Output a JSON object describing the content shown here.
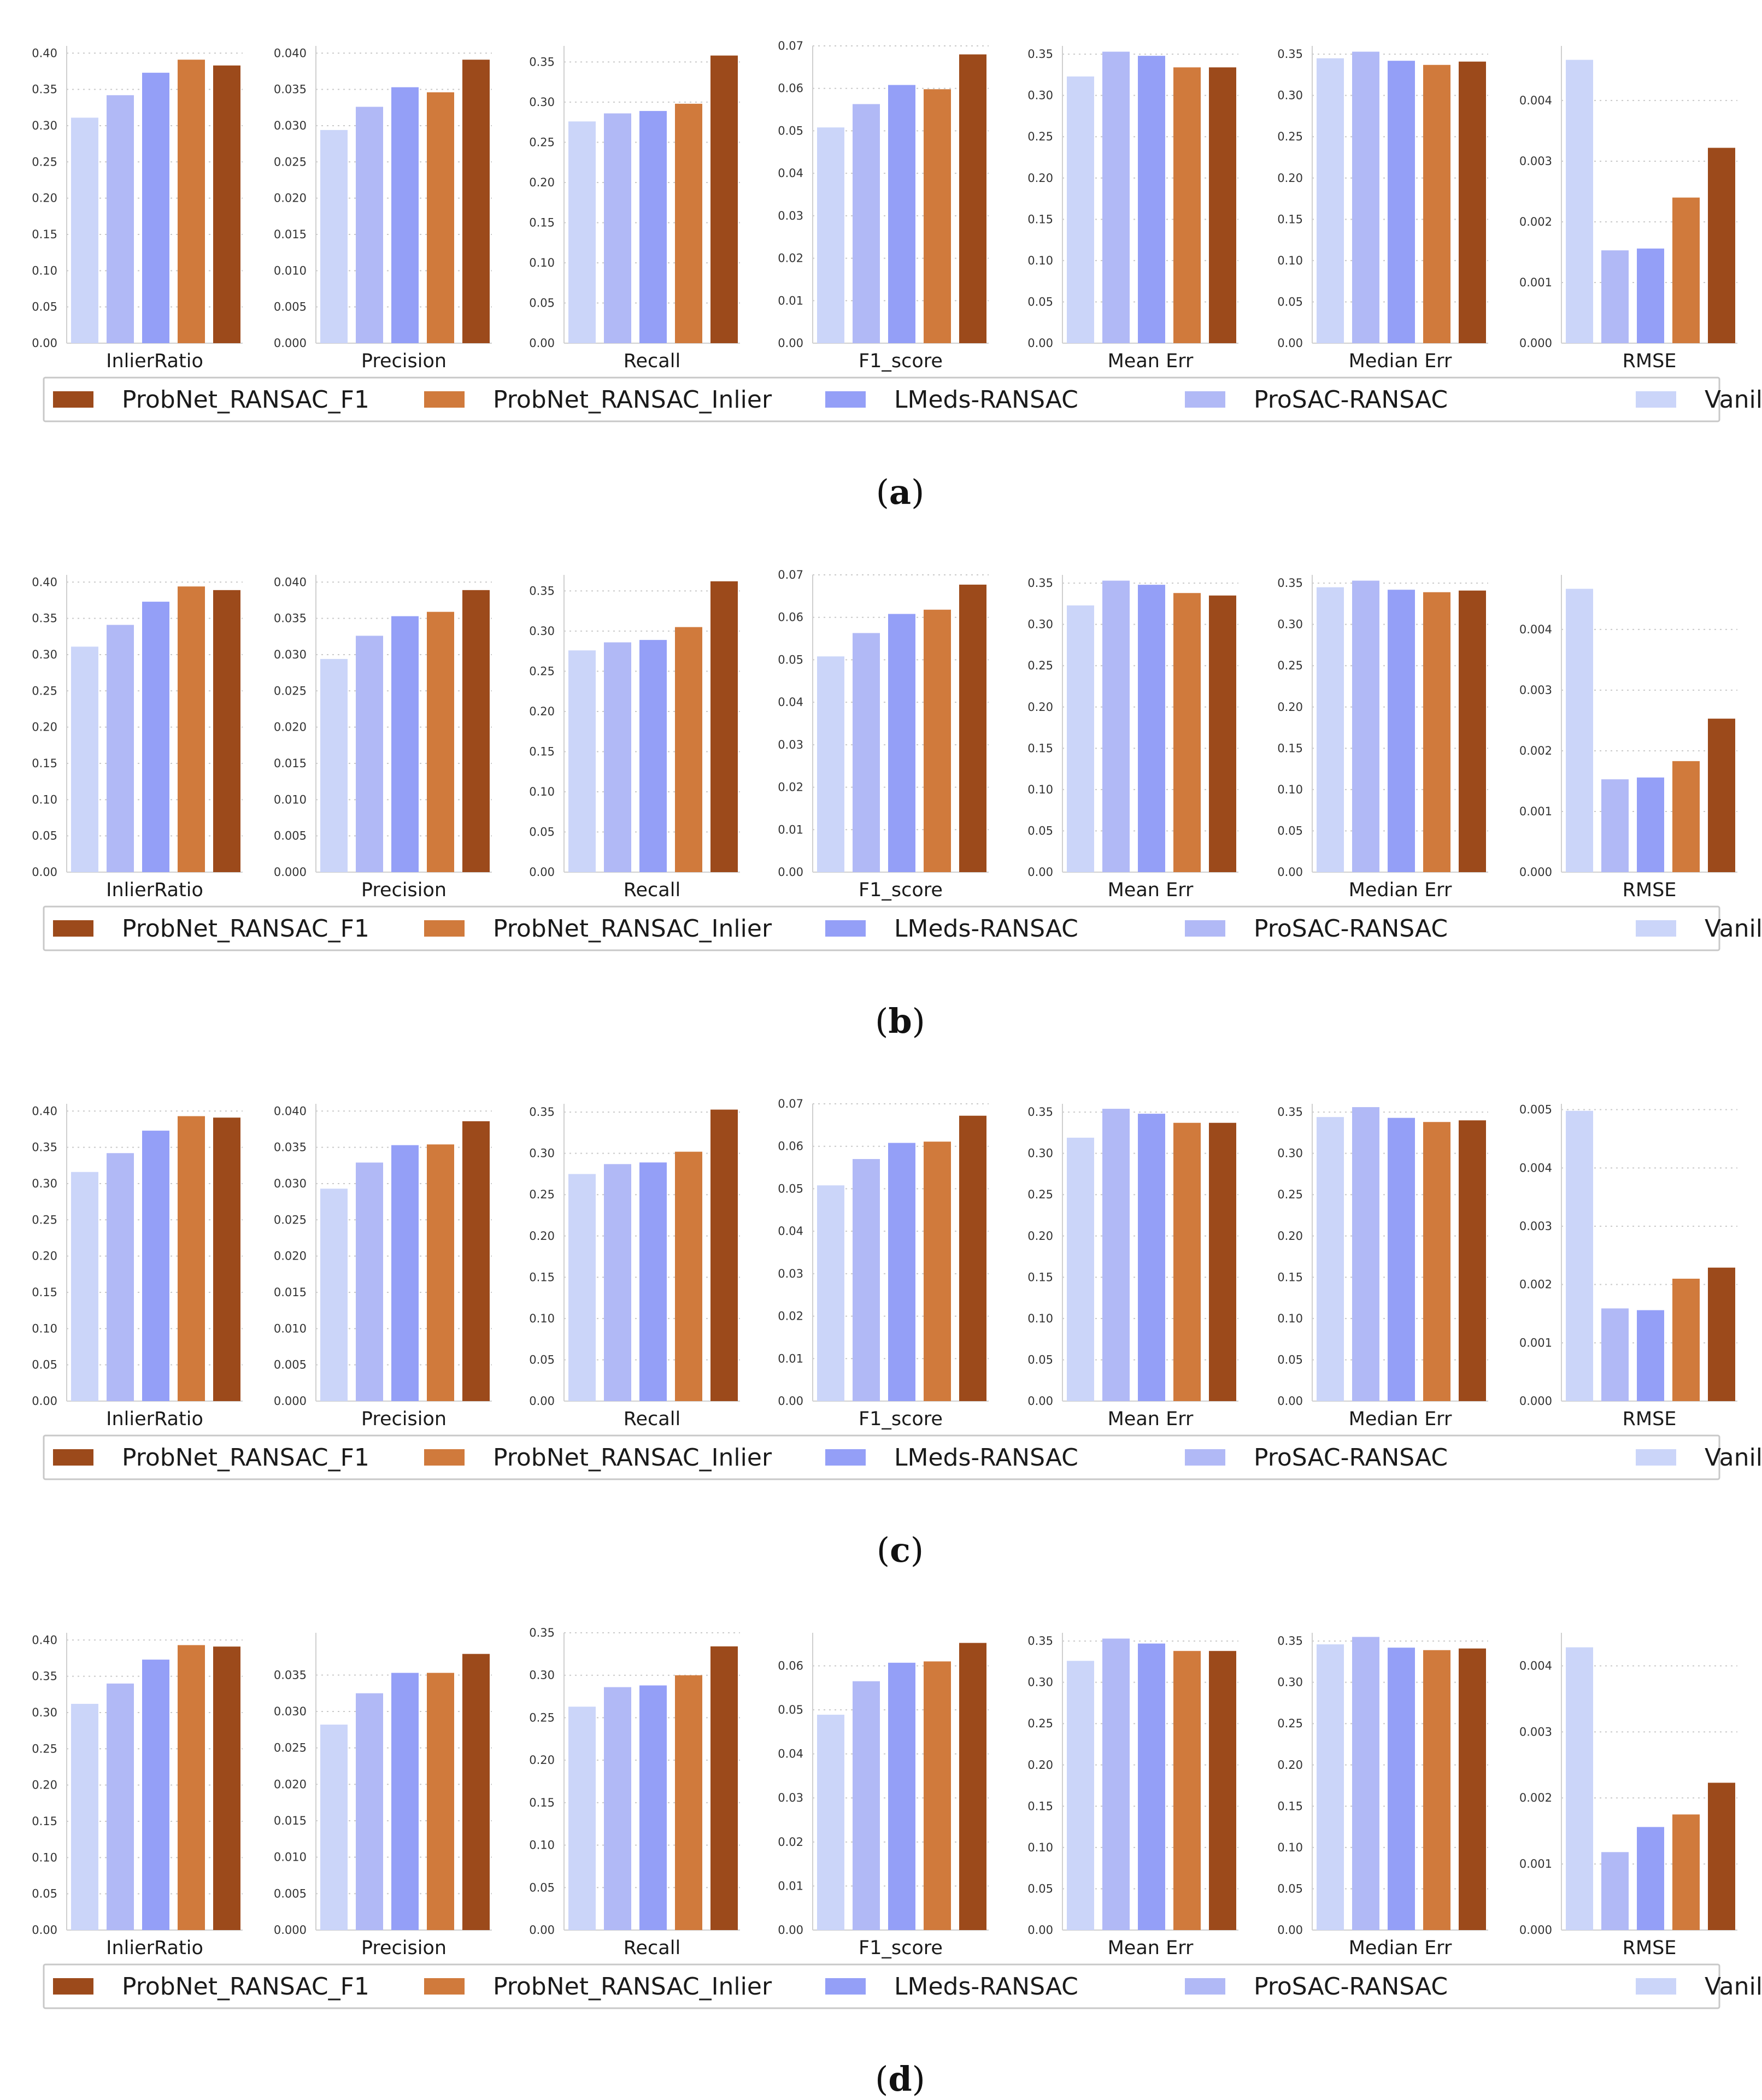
{
  "figure": {
    "legend": [
      {
        "name": "ProbNet_RANSAC_F1",
        "color": "#9c4a1b"
      },
      {
        "name": "ProbNet_RANSAC_Inlier",
        "color": "#d07a3c"
      },
      {
        "name": "LMeds-RANSAC",
        "color": "#949ff7"
      },
      {
        "name": "ProSAC-RANSAC",
        "color": "#b1b9f6"
      },
      {
        "name": "Vanilla RANSAC",
        "color": "#cbd5f9"
      }
    ],
    "bar_order": [
      "Vanilla RANSAC",
      "ProSAC-RANSAC",
      "LMeds-RANSAC",
      "ProbNet_RANSAC_Inlier",
      "ProbNet_RANSAC_F1"
    ],
    "panels": [
      {
        "label": "a"
      },
      {
        "label": "b"
      },
      {
        "label": "c"
      },
      {
        "label": "d"
      }
    ]
  },
  "chart_data": [
    {
      "panel": "(a)",
      "type": "bar",
      "charts": [
        {
          "title": "InlierRatio",
          "ylim": [
            0,
            0.41
          ],
          "ticks": [
            "0.00",
            "0.05",
            "0.10",
            "0.15",
            "0.20",
            "0.25",
            "0.30",
            "0.35",
            "0.40"
          ],
          "values": [
            0.311,
            0.342,
            0.373,
            0.391,
            0.383
          ]
        },
        {
          "title": "Precision",
          "ylim": [
            0,
            0.041
          ],
          "ticks": [
            "0.000",
            "0.005",
            "0.010",
            "0.015",
            "0.020",
            "0.025",
            "0.030",
            "0.035",
            "0.040"
          ],
          "values": [
            0.0294,
            0.0326,
            0.0353,
            0.0346,
            0.0391
          ]
        },
        {
          "title": "Recall",
          "ylim": [
            0,
            0.37
          ],
          "ticks": [
            "0.00",
            "0.05",
            "0.10",
            "0.15",
            "0.20",
            "0.25",
            "0.30",
            "0.35"
          ],
          "values": [
            0.276,
            0.286,
            0.289,
            0.298,
            0.358
          ]
        },
        {
          "title": "F1_score",
          "ylim": [
            0,
            0.07
          ],
          "ticks": [
            "0.00",
            "0.01",
            "0.02",
            "0.03",
            "0.04",
            "0.05",
            "0.06",
            "0.07"
          ],
          "values": [
            0.0508,
            0.0563,
            0.0608,
            0.0598,
            0.068
          ]
        },
        {
          "title": "Mean Err",
          "ylim": [
            0,
            0.36
          ],
          "ticks": [
            "0.00",
            "0.05",
            "0.10",
            "0.15",
            "0.20",
            "0.25",
            "0.30",
            "0.35"
          ],
          "values": [
            0.323,
            0.353,
            0.348,
            0.334,
            0.334
          ]
        },
        {
          "title": "Median Err",
          "ylim": [
            0,
            0.36
          ],
          "ticks": [
            "0.00",
            "0.05",
            "0.10",
            "0.15",
            "0.20",
            "0.25",
            "0.30",
            "0.35"
          ],
          "values": [
            0.345,
            0.353,
            0.342,
            0.337,
            0.341
          ]
        },
        {
          "title": "RMSE",
          "ylim": [
            0,
            0.0049
          ],
          "ticks": [
            "0.000",
            "0.001",
            "0.002",
            "0.003",
            "0.004"
          ],
          "values": [
            0.00467,
            0.00153,
            0.00156,
            0.0024,
            0.00322
          ]
        }
      ]
    },
    {
      "panel": "(b)",
      "type": "bar",
      "charts": [
        {
          "title": "InlierRatio",
          "ylim": [
            0,
            0.41
          ],
          "ticks": [
            "0.00",
            "0.05",
            "0.10",
            "0.15",
            "0.20",
            "0.25",
            "0.30",
            "0.35",
            "0.40"
          ],
          "values": [
            0.311,
            0.341,
            0.373,
            0.394,
            0.389
          ]
        },
        {
          "title": "Precision",
          "ylim": [
            0,
            0.041
          ],
          "ticks": [
            "0.000",
            "0.005",
            "0.010",
            "0.015",
            "0.020",
            "0.025",
            "0.030",
            "0.035",
            "0.040"
          ],
          "values": [
            0.0294,
            0.0326,
            0.0353,
            0.0359,
            0.0389
          ]
        },
        {
          "title": "Recall",
          "ylim": [
            0,
            0.37
          ],
          "ticks": [
            "0.00",
            "0.05",
            "0.10",
            "0.15",
            "0.20",
            "0.25",
            "0.30",
            "0.35"
          ],
          "values": [
            0.276,
            0.286,
            0.289,
            0.305,
            0.362
          ]
        },
        {
          "title": "F1_score",
          "ylim": [
            0,
            0.07
          ],
          "ticks": [
            "0.00",
            "0.01",
            "0.02",
            "0.03",
            "0.04",
            "0.05",
            "0.06",
            "0.07"
          ],
          "values": [
            0.0508,
            0.0563,
            0.0608,
            0.0618,
            0.0677
          ]
        },
        {
          "title": "Mean Err",
          "ylim": [
            0,
            0.36
          ],
          "ticks": [
            "0.00",
            "0.05",
            "0.10",
            "0.15",
            "0.20",
            "0.25",
            "0.30",
            "0.35"
          ],
          "values": [
            0.323,
            0.353,
            0.348,
            0.338,
            0.335
          ]
        },
        {
          "title": "Median Err",
          "ylim": [
            0,
            0.36
          ],
          "ticks": [
            "0.00",
            "0.05",
            "0.10",
            "0.15",
            "0.20",
            "0.25",
            "0.30",
            "0.35"
          ],
          "values": [
            0.345,
            0.353,
            0.342,
            0.339,
            0.341
          ]
        },
        {
          "title": "RMSE",
          "ylim": [
            0,
            0.0049
          ],
          "ticks": [
            "0.000",
            "0.001",
            "0.002",
            "0.003",
            "0.004"
          ],
          "values": [
            0.00467,
            0.00153,
            0.00156,
            0.00183,
            0.00253
          ]
        }
      ]
    },
    {
      "panel": "(c)",
      "type": "bar",
      "charts": [
        {
          "title": "InlierRatio",
          "ylim": [
            0,
            0.41
          ],
          "ticks": [
            "0.00",
            "0.05",
            "0.10",
            "0.15",
            "0.20",
            "0.25",
            "0.30",
            "0.35",
            "0.40"
          ],
          "values": [
            0.316,
            0.342,
            0.373,
            0.393,
            0.391
          ]
        },
        {
          "title": "Precision",
          "ylim": [
            0,
            0.041
          ],
          "ticks": [
            "0.000",
            "0.005",
            "0.010",
            "0.015",
            "0.020",
            "0.025",
            "0.030",
            "0.035",
            "0.040"
          ],
          "values": [
            0.0293,
            0.0329,
            0.0353,
            0.0354,
            0.0386
          ]
        },
        {
          "title": "Recall",
          "ylim": [
            0,
            0.36
          ],
          "ticks": [
            "0.00",
            "0.05",
            "0.10",
            "0.15",
            "0.20",
            "0.25",
            "0.30",
            "0.35"
          ],
          "values": [
            0.275,
            0.287,
            0.289,
            0.302,
            0.353
          ]
        },
        {
          "title": "F1_score",
          "ylim": [
            0,
            0.07
          ],
          "ticks": [
            "0.00",
            "0.01",
            "0.02",
            "0.03",
            "0.04",
            "0.05",
            "0.06",
            "0.07"
          ],
          "values": [
            0.0508,
            0.057,
            0.0608,
            0.0611,
            0.0672
          ]
        },
        {
          "title": "Mean Err",
          "ylim": [
            0,
            0.36
          ],
          "ticks": [
            "0.00",
            "0.05",
            "0.10",
            "0.15",
            "0.20",
            "0.25",
            "0.30",
            "0.35"
          ],
          "values": [
            0.319,
            0.354,
            0.348,
            0.337,
            0.337
          ]
        },
        {
          "title": "Median Err",
          "ylim": [
            0,
            0.36
          ],
          "ticks": [
            "0.00",
            "0.05",
            "0.10",
            "0.15",
            "0.20",
            "0.25",
            "0.30",
            "0.35"
          ],
          "values": [
            0.344,
            0.356,
            0.343,
            0.338,
            0.34
          ]
        },
        {
          "title": "RMSE",
          "ylim": [
            0,
            0.0051
          ],
          "ticks": [
            "0.000",
            "0.001",
            "0.002",
            "0.003",
            "0.004",
            "0.005"
          ],
          "values": [
            0.00498,
            0.00159,
            0.00156,
            0.0021,
            0.00229
          ]
        }
      ]
    },
    {
      "panel": "(d)",
      "type": "bar",
      "charts": [
        {
          "title": "InlierRatio",
          "ylim": [
            0,
            0.41
          ],
          "ticks": [
            "0.00",
            "0.05",
            "0.10",
            "0.15",
            "0.20",
            "0.25",
            "0.30",
            "0.35",
            "0.40"
          ],
          "values": [
            0.312,
            0.34,
            0.373,
            0.393,
            0.391
          ]
        },
        {
          "title": "Precision",
          "ylim": [
            0,
            0.0408
          ],
          "ticks": [
            "0.000",
            "0.005",
            "0.010",
            "0.015",
            "0.020",
            "0.025",
            "0.030",
            "0.035"
          ],
          "values": [
            0.0282,
            0.0325,
            0.0353,
            0.0353,
            0.0379
          ]
        },
        {
          "title": "Recall",
          "ylim": [
            0,
            0.35
          ],
          "ticks": [
            "0.00",
            "0.05",
            "0.10",
            "0.15",
            "0.20",
            "0.25",
            "0.30",
            "0.35"
          ],
          "values": [
            0.263,
            0.286,
            0.288,
            0.3,
            0.334
          ]
        },
        {
          "title": "F1_score",
          "ylim": [
            0,
            0.0675
          ],
          "ticks": [
            "0.00",
            "0.01",
            "0.02",
            "0.03",
            "0.04",
            "0.05",
            "0.06"
          ],
          "values": [
            0.0489,
            0.0565,
            0.0607,
            0.061,
            0.0652
          ]
        },
        {
          "title": "Mean Err",
          "ylim": [
            0,
            0.36
          ],
          "ticks": [
            "0.00",
            "0.05",
            "0.10",
            "0.15",
            "0.20",
            "0.25",
            "0.30",
            "0.35"
          ],
          "values": [
            0.326,
            0.353,
            0.347,
            0.338,
            0.338
          ]
        },
        {
          "title": "Median Err",
          "ylim": [
            0,
            0.36
          ],
          "ticks": [
            "0.00",
            "0.05",
            "0.10",
            "0.15",
            "0.20",
            "0.25",
            "0.30",
            "0.35"
          ],
          "values": [
            0.346,
            0.355,
            0.342,
            0.339,
            0.341
          ]
        },
        {
          "title": "RMSE",
          "ylim": [
            0,
            0.0045
          ],
          "ticks": [
            "0.000",
            "0.001",
            "0.002",
            "0.003",
            "0.004"
          ],
          "values": [
            0.00428,
            0.00118,
            0.00156,
            0.00175,
            0.00223
          ]
        }
      ]
    }
  ]
}
